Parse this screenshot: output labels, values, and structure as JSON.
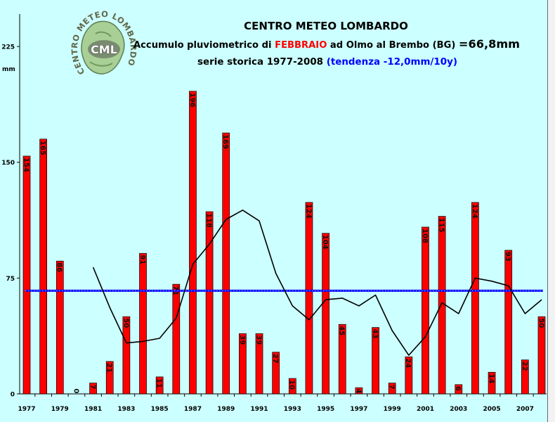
{
  "logo": {
    "ring_text": "CENTRO METEO LOMBARDO",
    "initials": "CML"
  },
  "colors": {
    "background": "#ccffff",
    "bar": "#ff0000",
    "bar_outline": "#000000",
    "mean_line": "#0000ff",
    "moving_average": "#000000",
    "month_text": "#ff0000",
    "trend_text": "#0000ff"
  },
  "chart_data": {
    "type": "bar",
    "title": "CENTRO METEO LOMBARDO",
    "subtitle": {
      "prefix": "Accumulo pluviometrico di ",
      "month": "FEBBRAIO",
      "place": " ad Olmo al Brembo (BG) ",
      "mean_label": "=66,8mm"
    },
    "series_note": {
      "period": "serie storica 1977-2008 ",
      "trend": "(tendenza -12,0mm/10y)"
    },
    "xlabel": "",
    "ylabel": "mm",
    "ylim": [
      0,
      246
    ],
    "y_ticks": [
      0,
      75,
      150,
      225
    ],
    "x_tick_labels": [
      "1977",
      "1979",
      "1981",
      "1983",
      "1985",
      "1987",
      "1989",
      "1991",
      "1993",
      "1995",
      "1997",
      "1999",
      "2001",
      "2003",
      "2005",
      "2007"
    ],
    "x": [
      1977,
      1978,
      1979,
      1980,
      1981,
      1982,
      1983,
      1984,
      1985,
      1986,
      1987,
      1988,
      1989,
      1990,
      1991,
      1992,
      1993,
      1994,
      1995,
      1996,
      1997,
      1998,
      1999,
      2000,
      2001,
      2002,
      2003,
      2004,
      2005,
      2006,
      2007,
      2008
    ],
    "values": [
      154,
      165,
      86,
      0,
      7,
      21,
      50,
      91,
      11,
      71,
      196,
      118,
      169,
      39,
      39,
      27,
      10,
      124,
      104,
      45,
      4,
      43,
      7,
      24,
      108,
      115,
      6,
      124,
      14,
      93,
      22,
      50
    ],
    "moving_average": {
      "type": "line",
      "x": [
        1981,
        1982,
        1983,
        1984,
        1985,
        1986,
        1987,
        1988,
        1989,
        1990,
        1991,
        1992,
        1993,
        1994,
        1995,
        1996,
        1997,
        1998,
        1999,
        2000,
        2001,
        2002,
        2003,
        2004,
        2005,
        2006,
        2007,
        2008
      ],
      "values": [
        82,
        56,
        33,
        34,
        36,
        49,
        84,
        97,
        113,
        119,
        112,
        78,
        57,
        48,
        61,
        62,
        57,
        64,
        41,
        25,
        37,
        59,
        52,
        75,
        73,
        70,
        52,
        61
      ]
    },
    "mean": 66.8,
    "grid": false,
    "legend": "none"
  }
}
